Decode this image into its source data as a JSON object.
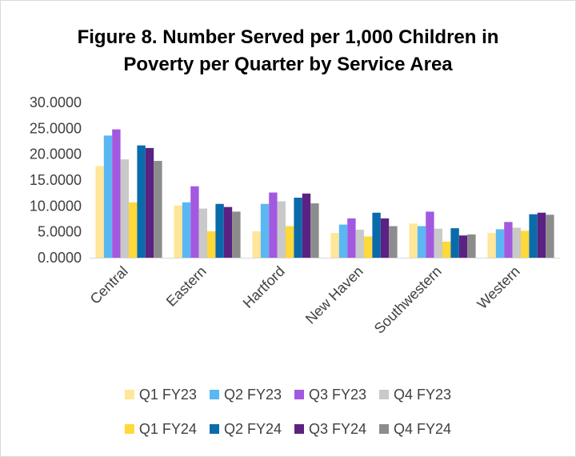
{
  "chart_data": {
    "type": "bar",
    "title_lines": [
      "Figure 8. Number Served per 1,000 Children in",
      "Poverty per Quarter by Service Area"
    ],
    "xlabel": "",
    "ylabel": "",
    "ylim": [
      0,
      30
    ],
    "y_ticks": [
      "0.0000",
      "5.0000",
      "10.0000",
      "15.0000",
      "20.0000",
      "25.0000",
      "30.0000"
    ],
    "grid": false,
    "legend_position": "bottom",
    "categories": [
      "Central",
      "Eastern",
      "Hartford",
      "New Haven",
      "Southwestern",
      "Western"
    ],
    "series": [
      {
        "name": "Q1 FY23",
        "color": "#FFE699",
        "values": [
          17.7,
          10.1,
          5.1,
          4.8,
          6.6,
          4.8
        ]
      },
      {
        "name": "Q2 FY23",
        "color": "#5BB7F2",
        "values": [
          23.6,
          10.7,
          10.4,
          6.4,
          6.1,
          5.5
        ]
      },
      {
        "name": "Q3 FY23",
        "color": "#A259E0",
        "values": [
          24.8,
          13.8,
          12.6,
          7.6,
          8.9,
          6.9
        ]
      },
      {
        "name": "Q4 FY23",
        "color": "#C9C9C9",
        "values": [
          19.0,
          9.5,
          10.9,
          5.4,
          5.6,
          5.8
        ]
      },
      {
        "name": "Q1 FY24",
        "color": "#FFD83A",
        "values": [
          10.7,
          5.1,
          6.1,
          4.1,
          3.1,
          5.2
        ]
      },
      {
        "name": "Q2 FY24",
        "color": "#0B6BAA",
        "values": [
          21.7,
          10.4,
          11.6,
          8.7,
          5.7,
          8.4
        ]
      },
      {
        "name": "Q3 FY24",
        "color": "#5B2283",
        "values": [
          21.2,
          9.8,
          12.4,
          7.6,
          4.3,
          8.7
        ]
      },
      {
        "name": "Q4 FY24",
        "color": "#8C8C8C",
        "values": [
          18.7,
          8.9,
          10.5,
          6.1,
          4.5,
          8.3
        ]
      }
    ]
  }
}
